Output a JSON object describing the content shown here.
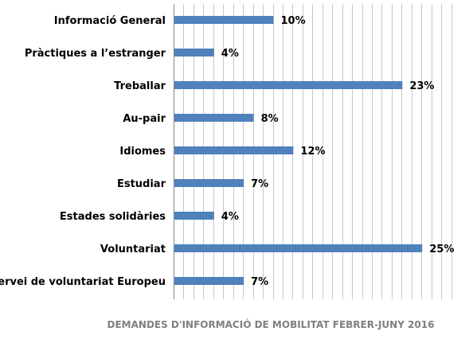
{
  "chart_data": {
    "type": "bar",
    "orientation": "horizontal",
    "title": "DEMANDES D'INFORMACIÓ DE MOBILITAT FEBRER-JUNY 2016",
    "categories": [
      "Informació General",
      "Pràctiques a l’estranger",
      "Treballar",
      "Au-pair",
      "Idiomes",
      "Estudiar",
      "Estades solidàries",
      "Voluntariat",
      "Servei de voluntariat Europeu"
    ],
    "values": [
      10,
      4,
      23,
      8,
      12,
      7,
      4,
      25,
      7
    ],
    "value_labels": [
      "10%",
      "4%",
      "23%",
      "8%",
      "12%",
      "7%",
      "4%",
      "25%",
      "7%"
    ],
    "xlim": [
      0,
      28
    ],
    "grid": true,
    "legend": "none",
    "bar_color": "#4f81bd"
  }
}
